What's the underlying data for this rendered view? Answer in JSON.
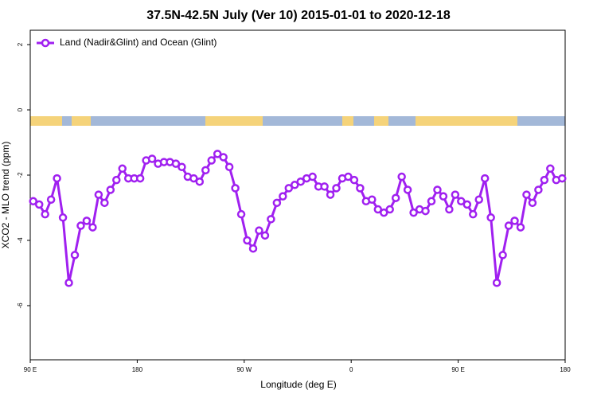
{
  "chart_data": {
    "type": "line",
    "title": "37.5N-42.5N July (Ver 10)   2015-01-01 to 2020-12-18",
    "x_label": "Longitude (deg E)",
    "y_label": "XCO2 - MLO trend (ppm)",
    "xlim": [
      90,
      540
    ],
    "xticks": [
      {
        "value": 90,
        "label": "90 E"
      },
      180,
      {
        "value": 270,
        "label": "90 W"
      },
      {
        "value": 360,
        "label": "0"
      },
      {
        "value": 450,
        "label": "90 E"
      },
      {
        "value": 540,
        "label": "180"
      }
    ],
    "ylim": [
      -7.66,
      2.44
    ],
    "yticks": [
      2,
      0,
      -2,
      -4,
      -6
    ],
    "legend": "top-left",
    "x": [
      92.5,
      97.5,
      102.5,
      107.5,
      112.5,
      117.5,
      122.5,
      127.5,
      132.5,
      137.5,
      142.5,
      147.5,
      152.5,
      157.5,
      162.5,
      167.5,
      172.5,
      177.5,
      182.5,
      187.5,
      192.5,
      197.5,
      202.5,
      207.5,
      212.5,
      217.5,
      222.5,
      227.5,
      232.5,
      237.5,
      242.5,
      247.5,
      252.5,
      257.5,
      262.5,
      267.5,
      272.5,
      277.5,
      282.5,
      287.5,
      292.5,
      297.5,
      302.5,
      307.5,
      312.5,
      317.5,
      322.5,
      327.5,
      332.5,
      337.5,
      342.5,
      347.5,
      352.5,
      357.5,
      362.5,
      367.5,
      372.5,
      377.5,
      382.5,
      387.5,
      392.5,
      397.5,
      402.5,
      407.5,
      412.5,
      417.5,
      422.5,
      427.5,
      432.5,
      437.5,
      442.5,
      447.5,
      452.5,
      457.5,
      462.5,
      467.5,
      472.5,
      477.5,
      482.5,
      487.5,
      492.5,
      497.5,
      502.5,
      507.5,
      512.5,
      517.5,
      522.5,
      527.5,
      532.5,
      537.5
    ],
    "series": [
      {
        "name": "Land (Nadir&Glint) and Ocean (Glint)",
        "color": "#a020f0",
        "values": [
          -2.8,
          -2.9,
          -3.2,
          -2.75,
          -2.1,
          -3.3,
          -5.3,
          -4.45,
          -3.55,
          -3.4,
          -3.6,
          -2.6,
          -2.85,
          -2.45,
          -2.15,
          -1.8,
          -2.1,
          -2.1,
          -2.1,
          -1.55,
          -1.5,
          -1.65,
          -1.6,
          -1.6,
          -1.65,
          -1.75,
          -2.05,
          -2.1,
          -2.2,
          -1.85,
          -1.55,
          -1.35,
          -1.45,
          -1.75,
          -2.4,
          -3.2,
          -4.0,
          -4.25,
          -3.7,
          -3.85,
          -3.35,
          -2.85,
          -2.65,
          -2.4,
          -2.3,
          -2.2,
          -2.1,
          -2.05,
          -2.35,
          -2.35,
          -2.6,
          -2.4,
          -2.1,
          -2.05,
          -2.15,
          -2.4,
          -2.8,
          -2.75,
          -3.05,
          -3.15,
          -3.05,
          -2.7,
          -2.05,
          -2.45,
          -3.15,
          -3.05,
          -3.1,
          -2.8,
          -2.45,
          -2.65,
          -3.05,
          -2.6,
          -2.8,
          -2.9,
          -3.2,
          -2.75,
          -2.1,
          -3.3,
          -5.3,
          -4.45,
          -3.55,
          -3.4,
          -3.6,
          -2.6,
          -2.85,
          -2.45,
          -2.15,
          -1.8,
          -2.15,
          -2.1
        ]
      }
    ]
  }
}
